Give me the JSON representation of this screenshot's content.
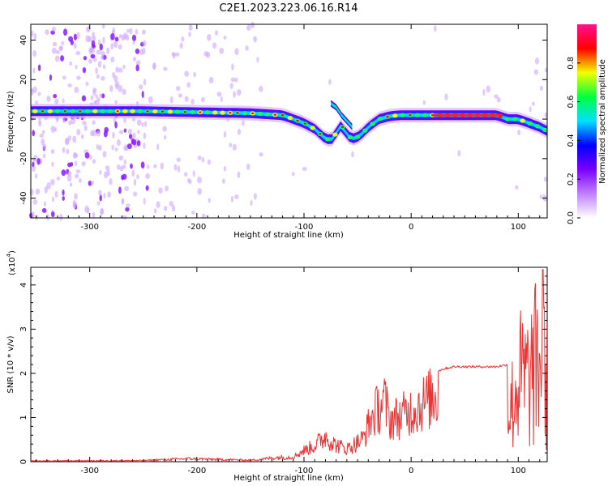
{
  "title": "C2E1.2023.223.06.16.R14",
  "chart_data": [
    {
      "type": "heatmap",
      "xlabel": "Height of straight line (km)",
      "ylabel": "Frequency (Hz)",
      "xlim": [
        -355,
        127
      ],
      "ylim": [
        -50,
        48
      ],
      "xticks": [
        -300,
        -200,
        -100,
        0,
        100
      ],
      "xtick_labels": [
        "-300",
        "-200",
        "-100",
        "0",
        "100"
      ],
      "yticks": [
        -40,
        -20,
        0,
        20,
        40
      ],
      "ytick_labels": [
        "-40",
        "-20",
        "0",
        "20",
        "40"
      ],
      "colorbar": {
        "label": "Normalized spectral amplitude",
        "range": [
          0,
          1
        ],
        "ticks": [
          0.0,
          0.2,
          0.4,
          0.6,
          0.8
        ],
        "tick_labels": [
          "0.0",
          "0.2",
          "0.4",
          "0.6",
          "0.8"
        ],
        "colors": [
          "#ffffff",
          "#c080ff",
          "#7a00ff",
          "#0000ff",
          "#00e0ff",
          "#00ff40",
          "#f0ff00",
          "#ff0000",
          "#ff1090"
        ]
      },
      "ridge": {
        "x": [
          -355,
          -300,
          -250,
          -200,
          -150,
          -120,
          -100,
          -90,
          -82,
          -75,
          -70,
          -65,
          -60,
          -55,
          -50,
          -45,
          -40,
          -35,
          -30,
          -20,
          -10,
          0,
          20,
          40,
          60,
          80,
          90,
          100,
          110,
          120,
          127
        ],
        "y": [
          4,
          4,
          4,
          3.5,
          3,
          2,
          -2,
          -5,
          -9,
          -11,
          -7,
          -3,
          -8,
          -10,
          -9,
          -7,
          -4,
          -2,
          0,
          1.5,
          2,
          2,
          2,
          2,
          2,
          2,
          0,
          0,
          -2,
          -4,
          -6
        ]
      },
      "branch": {
        "x": [
          -75,
          -70,
          -65,
          -60,
          -55
        ],
        "y": [
          8,
          6,
          2,
          -1,
          -4
        ]
      },
      "grid": false,
      "legend": "colorbar-right"
    },
    {
      "type": "line",
      "xlabel": "Height of straight line (km)",
      "ylabel": "SNR (10 * v/v)",
      "y_multiplier": "(x10",
      "y_multiplier_exp": "4",
      "y_multiplier_close": ")",
      "xlim": [
        -355,
        127
      ],
      "ylim": [
        0,
        4.4
      ],
      "xticks": [
        -300,
        -200,
        -100,
        0,
        100
      ],
      "xtick_labels": [
        "-300",
        "-200",
        "-100",
        "0",
        "100"
      ],
      "yticks": [
        0,
        1,
        2,
        3,
        4
      ],
      "ytick_labels": [
        "0",
        "1",
        "2",
        "3",
        "4"
      ],
      "color": "#ee3333",
      "envelope": {
        "x": [
          -355,
          -250,
          -210,
          -150,
          -110,
          -100,
          -90,
          -80,
          -72,
          -60,
          -45,
          -38,
          -30,
          -25,
          -20,
          -10,
          0,
          10,
          20,
          30,
          40,
          60,
          80,
          90,
          95,
          100,
          110,
          120,
          127
        ],
        "y": [
          0.02,
          0.03,
          0.08,
          0.04,
          0.15,
          0.35,
          0.5,
          0.8,
          0.55,
          0.4,
          0.7,
          1.3,
          1.7,
          1.9,
          1.3,
          1.4,
          1.6,
          1.8,
          2.0,
          2.1,
          2.15,
          2.15,
          2.15,
          2.2,
          2.4,
          3.4,
          3.3,
          4.3,
          3.1
        ]
      },
      "peak": {
        "x": 123,
        "y": 4.35
      },
      "grid": false
    }
  ]
}
